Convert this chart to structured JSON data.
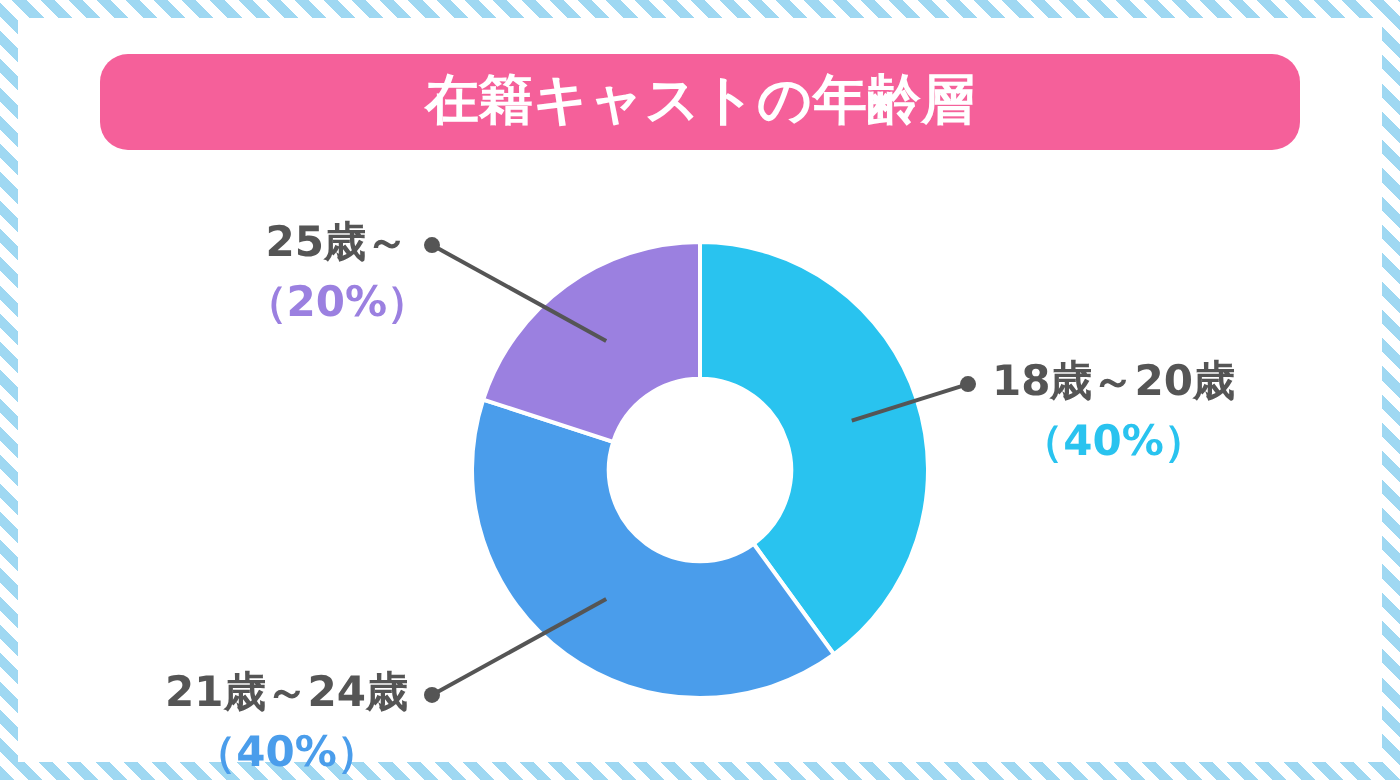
{
  "chart_data": {
    "type": "donut",
    "title": "在籍キャストの年齢層",
    "categories": [
      "18歳～20歳",
      "21歳～24歳",
      "25歳～"
    ],
    "values": [
      40,
      40,
      20
    ],
    "colors": [
      "#29c3ef",
      "#4a9deb",
      "#9b80e0"
    ],
    "value_labels": [
      "（40%）",
      "（40%）",
      "（20%）"
    ],
    "legend": false
  }
}
